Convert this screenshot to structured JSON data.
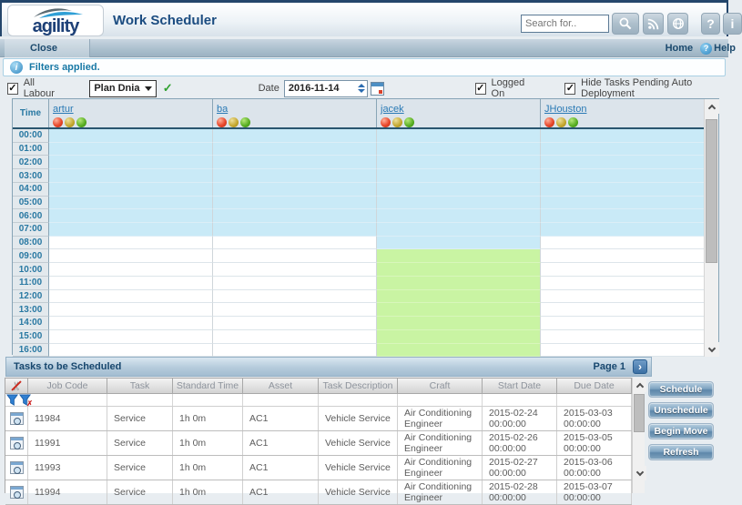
{
  "header": {
    "logo_text": "agility",
    "title": "Work Scheduler",
    "search_placeholder": "Search for..",
    "help_button": "?",
    "info_button": "i"
  },
  "menubar": {
    "close_label": "Close",
    "home_label": "Home",
    "help_label": "Help",
    "help_icon": "?"
  },
  "banner": {
    "message": "Filters applied.",
    "info_icon": "i"
  },
  "filters": {
    "all_labour_label": "All Labour",
    "plan_value": "Plan Dnia",
    "check_mark": "✓",
    "date_label": "Date",
    "date_value": "2016-11-14",
    "logged_on_label": "Logged On",
    "hide_tasks_label": "Hide Tasks Pending Auto Deployment"
  },
  "schedule": {
    "time_header": "Time",
    "workers": [
      {
        "name": "artur",
        "dots": [
          "red",
          "yellow",
          "green"
        ]
      },
      {
        "name": "ba",
        "dots": [
          "red",
          "yellow",
          "green"
        ]
      },
      {
        "name": "jacek",
        "dots": [
          "red",
          "yellow",
          "green"
        ]
      },
      {
        "name": "JHouston",
        "dots": [
          "red",
          "yellow",
          "green"
        ]
      }
    ],
    "rows": [
      {
        "time": "00:00",
        "cells": [
          "blue",
          "blue",
          "blue",
          "blue"
        ]
      },
      {
        "time": "01:00",
        "cells": [
          "blue",
          "blue",
          "blue",
          "blue"
        ]
      },
      {
        "time": "02:00",
        "cells": [
          "blue",
          "blue",
          "blue",
          "blue"
        ]
      },
      {
        "time": "03:00",
        "cells": [
          "blue",
          "blue",
          "blue",
          "blue"
        ]
      },
      {
        "time": "04:00",
        "cells": [
          "blue",
          "blue",
          "blue",
          "blue"
        ]
      },
      {
        "time": "05:00",
        "cells": [
          "blue",
          "blue",
          "blue",
          "blue"
        ]
      },
      {
        "time": "06:00",
        "cells": [
          "blue",
          "blue",
          "blue",
          "blue"
        ]
      },
      {
        "time": "07:00",
        "cells": [
          "blue",
          "blue",
          "blue",
          "blue"
        ]
      },
      {
        "time": "08:00",
        "cells": [
          "white",
          "white",
          "blue",
          "white"
        ]
      },
      {
        "time": "09:00",
        "cells": [
          "white",
          "white",
          "green",
          "white"
        ]
      },
      {
        "time": "10:00",
        "cells": [
          "white",
          "white",
          "green",
          "white"
        ]
      },
      {
        "time": "11:00",
        "cells": [
          "white",
          "white",
          "green",
          "white"
        ]
      },
      {
        "time": "12:00",
        "cells": [
          "white",
          "white",
          "green",
          "white"
        ]
      },
      {
        "time": "13:00",
        "cells": [
          "white",
          "white",
          "green",
          "white"
        ]
      },
      {
        "time": "14:00",
        "cells": [
          "white",
          "white",
          "green",
          "white"
        ]
      },
      {
        "time": "15:00",
        "cells": [
          "white",
          "white",
          "green",
          "white"
        ]
      },
      {
        "time": "16:00",
        "cells": [
          "white",
          "white",
          "green",
          "white"
        ]
      }
    ]
  },
  "tasks": {
    "title": "Tasks to be Scheduled",
    "page_label": "Page 1",
    "next_arrow": "›",
    "columns": [
      "Job Code",
      "Task",
      "Standard Time",
      "Asset",
      "Task Description",
      "Craft",
      "Start Date",
      "Due Date"
    ],
    "rows": [
      {
        "job_code": "11984",
        "task": "Service",
        "standard_time": "1h 0m",
        "asset": "AC1",
        "description": "Vehicle Service",
        "craft": "Air Conditioning Engineer",
        "start_date": "2015-02-24 00:00:00",
        "due_date": "2015-03-03 00:00:00"
      },
      {
        "job_code": "11991",
        "task": "Service",
        "standard_time": "1h 0m",
        "asset": "AC1",
        "description": "Vehicle Service",
        "craft": "Air Conditioning Engineer",
        "start_date": "2015-02-26 00:00:00",
        "due_date": "2015-03-05 00:00:00"
      },
      {
        "job_code": "11993",
        "task": "Service",
        "standard_time": "1h 0m",
        "asset": "AC1",
        "description": "Vehicle Service",
        "craft": "Air Conditioning Engineer",
        "start_date": "2015-02-27 00:00:00",
        "due_date": "2015-03-06 00:00:00"
      },
      {
        "job_code": "11994",
        "task": "Service",
        "standard_time": "1h 0m",
        "asset": "AC1",
        "description": "Vehicle Service",
        "craft": "Air Conditioning Engineer",
        "start_date": "2015-02-28 00:00:00",
        "due_date": "2015-03-07 00:00:00"
      }
    ],
    "buttons": [
      "Schedule",
      "Unschedule",
      "Begin Move",
      "Refresh"
    ]
  },
  "colors": {
    "accent_navy": "#1b4c80",
    "cell_blue": "#c9eaf7",
    "cell_green": "#c9f4a3",
    "link_blue": "#2a7ab5",
    "banner_text": "#1878a5"
  }
}
